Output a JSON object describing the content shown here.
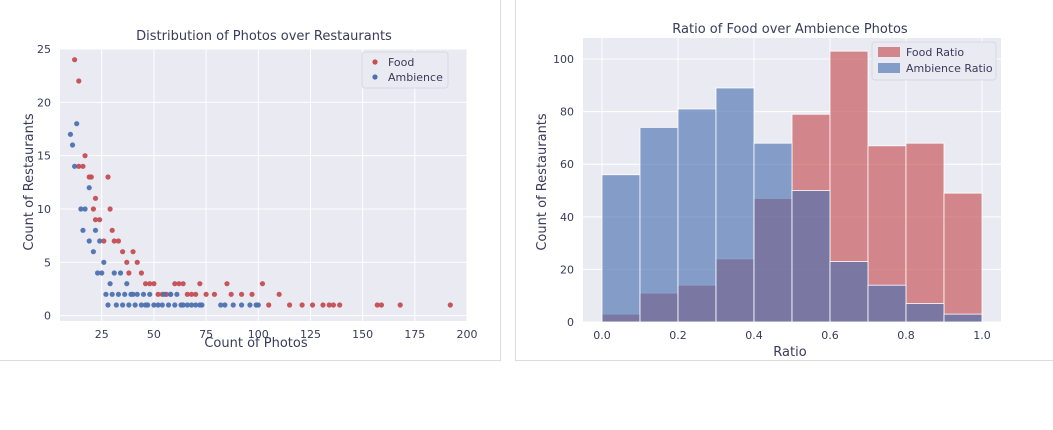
{
  "chart_data": [
    {
      "type": "scatter",
      "title": "Distribution of Photos over Restaurants",
      "xlabel": "Count of Photos",
      "ylabel": "Count of Restaurants",
      "xlim": [
        5,
        200
      ],
      "ylim": [
        -0.5,
        25
      ],
      "xticks": [
        25,
        50,
        75,
        100,
        125,
        150,
        175,
        200
      ],
      "yticks": [
        0,
        5,
        10,
        15,
        20,
        25
      ],
      "legend_position": "top-right",
      "grid": true,
      "series": [
        {
          "name": "Food",
          "color": "#c44e52",
          "points": [
            [
              12,
              24
            ],
            [
              14,
              22
            ],
            [
              14,
              14
            ],
            [
              16,
              14
            ],
            [
              17,
              15
            ],
            [
              19,
              13
            ],
            [
              20,
              13
            ],
            [
              21,
              10
            ],
            [
              22,
              9
            ],
            [
              24,
              9
            ],
            [
              22,
              11
            ],
            [
              26,
              7
            ],
            [
              28,
              13
            ],
            [
              29,
              10
            ],
            [
              30,
              8
            ],
            [
              31,
              7
            ],
            [
              33,
              7
            ],
            [
              35,
              6
            ],
            [
              37,
              5
            ],
            [
              38,
              4
            ],
            [
              40,
              6
            ],
            [
              42,
              5
            ],
            [
              44,
              4
            ],
            [
              46,
              3
            ],
            [
              48,
              3
            ],
            [
              50,
              3
            ],
            [
              52,
              2
            ],
            [
              54,
              2
            ],
            [
              56,
              2
            ],
            [
              58,
              2
            ],
            [
              60,
              3
            ],
            [
              62,
              3
            ],
            [
              64,
              3
            ],
            [
              66,
              2
            ],
            [
              68,
              2
            ],
            [
              70,
              2
            ],
            [
              72,
              3
            ],
            [
              75,
              2
            ],
            [
              79,
              2
            ],
            [
              85,
              3
            ],
            [
              87,
              2
            ],
            [
              92,
              2
            ],
            [
              97,
              2
            ],
            [
              102,
              3
            ],
            [
              105,
              1
            ],
            [
              110,
              2
            ],
            [
              115,
              1
            ],
            [
              121,
              1
            ],
            [
              126,
              1
            ],
            [
              131,
              1
            ],
            [
              134,
              1
            ],
            [
              136,
              1
            ],
            [
              139,
              1
            ],
            [
              157,
              1
            ],
            [
              159,
              1
            ],
            [
              168,
              1
            ],
            [
              192,
              1
            ]
          ]
        },
        {
          "name": "Ambience",
          "color": "#4c72b0",
          "points": [
            [
              10,
              17
            ],
            [
              11,
              16
            ],
            [
              12,
              14
            ],
            [
              13,
              18
            ],
            [
              15,
              10
            ],
            [
              16,
              8
            ],
            [
              17,
              10
            ],
            [
              19,
              7
            ],
            [
              19,
              12
            ],
            [
              21,
              6
            ],
            [
              22,
              8
            ],
            [
              23,
              4
            ],
            [
              24,
              7
            ],
            [
              25,
              4
            ],
            [
              26,
              5
            ],
            [
              27,
              2
            ],
            [
              28,
              1
            ],
            [
              29,
              3
            ],
            [
              30,
              2
            ],
            [
              31,
              4
            ],
            [
              32,
              1
            ],
            [
              33,
              2
            ],
            [
              34,
              4
            ],
            [
              35,
              1
            ],
            [
              36,
              2
            ],
            [
              37,
              3
            ],
            [
              38,
              1
            ],
            [
              39,
              2
            ],
            [
              40,
              2
            ],
            [
              41,
              1
            ],
            [
              42,
              2
            ],
            [
              44,
              1
            ],
            [
              45,
              2
            ],
            [
              46,
              1
            ],
            [
              47,
              1
            ],
            [
              48,
              2
            ],
            [
              50,
              1
            ],
            [
              52,
              1
            ],
            [
              54,
              1
            ],
            [
              55,
              2
            ],
            [
              57,
              1
            ],
            [
              58,
              2
            ],
            [
              60,
              1
            ],
            [
              61,
              2
            ],
            [
              63,
              1
            ],
            [
              64,
              1
            ],
            [
              66,
              1
            ],
            [
              68,
              1
            ],
            [
              70,
              1
            ],
            [
              72,
              1
            ],
            [
              73,
              1
            ],
            [
              82,
              1
            ],
            [
              84,
              1
            ],
            [
              88,
              1
            ],
            [
              92,
              1
            ],
            [
              96,
              1
            ],
            [
              99,
              1
            ],
            [
              100,
              1
            ]
          ]
        }
      ]
    },
    {
      "type": "bar",
      "title": "Ratio of Food over Ambience Photos",
      "xlabel": "Ratio",
      "ylabel": "Count of Restaurants",
      "xlim": [
        -0.05,
        1.05
      ],
      "ylim": [
        0,
        108
      ],
      "xticks": [
        "0.0",
        "0.2",
        "0.4",
        "0.6",
        "0.8",
        "1.0"
      ],
      "yticks": [
        0,
        20,
        40,
        60,
        80,
        100
      ],
      "legend_position": "top-right",
      "grid": true,
      "bin_edges": [
        0.0,
        0.1,
        0.2,
        0.3,
        0.4,
        0.5,
        0.6,
        0.7,
        0.8,
        0.9,
        1.0
      ],
      "series": [
        {
          "name": "Food Ratio",
          "color": "#c44e52",
          "values": [
            3,
            11,
            14,
            24,
            47,
            79,
            103,
            67,
            68,
            49
          ]
        },
        {
          "name": "Ambience Ratio",
          "color": "#4c72b0",
          "values": [
            56,
            74,
            81,
            89,
            68,
            50,
            23,
            14,
            7,
            3
          ]
        }
      ]
    }
  ]
}
